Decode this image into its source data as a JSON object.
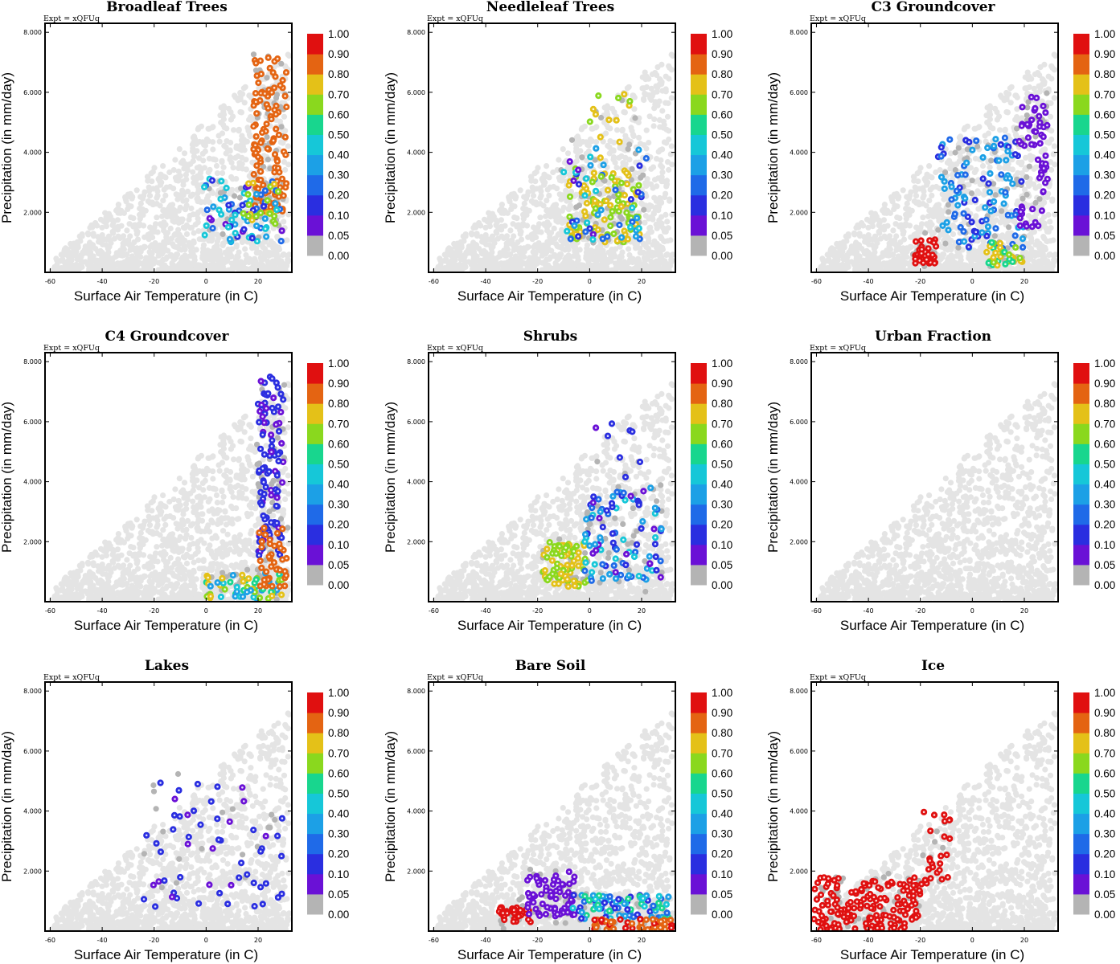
{
  "figure": {
    "colorbar": {
      "labels": [
        "0.00",
        "0.05",
        "0.10",
        "0.20",
        "0.30",
        "0.40",
        "0.50",
        "0.60",
        "0.70",
        "0.80",
        "0.90",
        "1.00"
      ],
      "colors": [
        "#b4b4b4",
        "#6a11d6",
        "#2a2ee0",
        "#1f6ae8",
        "#1ca0e6",
        "#16c7d8",
        "#18d68e",
        "#8ad81e",
        "#e4c118",
        "#e46412",
        "#e01010",
        "#e01010"
      ]
    },
    "background_point_color": "#e4e4e4",
    "zero_point_color": "#b4b4b4"
  },
  "chart_data": [
    {
      "type": "scatter",
      "title": "Broadleaf Trees",
      "expt": "Expt = xQFUq",
      "xlabel": "Surface Air Temperature (in C)",
      "ylabel": "Precipitation (in mm/day)",
      "xticks": [
        "-60",
        "-40",
        "-20",
        "0",
        "20"
      ],
      "xtick_values": [
        -60,
        -40,
        -20,
        0,
        20
      ],
      "yticks": [
        "2.000",
        "4.000",
        "6.000",
        "8.000"
      ],
      "ytick_values": [
        2,
        4,
        6,
        8
      ],
      "xlim": [
        -62,
        33
      ],
      "ylim": [
        0,
        8.3
      ],
      "highlight_clusters": [
        {
          "x_range": [
            18,
            31
          ],
          "y_range": [
            2.0,
            7.2
          ],
          "value_range": [
            0.8,
            0.9
          ],
          "count": 120
        },
        {
          "x_range": [
            -1,
            30
          ],
          "y_range": [
            1.0,
            3.2
          ],
          "value_range": [
            0.05,
            0.5
          ],
          "count": 70
        },
        {
          "x_range": [
            14,
            28
          ],
          "y_range": [
            1.6,
            3.0
          ],
          "value_range": [
            0.6,
            0.8
          ],
          "count": 20
        }
      ]
    },
    {
      "type": "scatter",
      "title": "Needleleaf Trees",
      "expt": "Expt = xQFUq",
      "xlabel": "Surface Air Temperature (in C)",
      "ylabel": "Precipitation (in mm/day)",
      "xticks": [
        "-60",
        "-40",
        "-20",
        "0",
        "20"
      ],
      "xtick_values": [
        -60,
        -40,
        -20,
        0,
        20
      ],
      "yticks": [
        "2.000",
        "4.000",
        "6.000",
        "8.000"
      ],
      "ytick_values": [
        2,
        4,
        6,
        8
      ],
      "xlim": [
        -62,
        33
      ],
      "ylim": [
        0,
        8.3
      ],
      "highlight_clusters": [
        {
          "x_range": [
            -8,
            20
          ],
          "y_range": [
            1.0,
            3.5
          ],
          "value_range": [
            0.6,
            0.8
          ],
          "count": 100
        },
        {
          "x_range": [
            -10,
            22
          ],
          "y_range": [
            1.0,
            4.2
          ],
          "value_range": [
            0.05,
            0.5
          ],
          "count": 50
        },
        {
          "x_range": [
            0,
            18
          ],
          "y_range": [
            3.0,
            6.0
          ],
          "value_range": [
            0.6,
            0.8
          ],
          "count": 18
        }
      ]
    },
    {
      "type": "scatter",
      "title": "C3 Groundcover",
      "expt": "Expt = xQFUq",
      "xlabel": "Surface Air Temperature (in C)",
      "ylabel": "Precipitation (in mm/day)",
      "xticks": [
        "-60",
        "-40",
        "-20",
        "0",
        "20"
      ],
      "xtick_values": [
        -60,
        -40,
        -20,
        0,
        20
      ],
      "yticks": [
        "2.000",
        "4.000",
        "6.000",
        "8.000"
      ],
      "ytick_values": [
        2,
        4,
        6,
        8
      ],
      "xlim": [
        -62,
        33
      ],
      "ylim": [
        0,
        8.3
      ],
      "highlight_clusters": [
        {
          "x_range": [
            -22,
            -14
          ],
          "y_range": [
            0.3,
            1.1
          ],
          "value_range": [
            0.9,
            1.0
          ],
          "count": 40
        },
        {
          "x_range": [
            -14,
            20
          ],
          "y_range": [
            0.8,
            4.5
          ],
          "value_range": [
            0.1,
            0.4
          ],
          "count": 110
        },
        {
          "x_range": [
            18,
            29
          ],
          "y_range": [
            1.5,
            6.0
          ],
          "value_range": [
            0.05,
            0.1
          ],
          "count": 60
        },
        {
          "x_range": [
            5,
            20
          ],
          "y_range": [
            0.2,
            1.0
          ],
          "value_range": [
            0.5,
            0.8
          ],
          "count": 35
        }
      ]
    },
    {
      "type": "scatter",
      "title": "C4 Groundcover",
      "expt": "Expt = xQFUq",
      "xlabel": "Surface Air Temperature (in C)",
      "ylabel": "Precipitation (in mm/day)",
      "xticks": [
        "-60",
        "-40",
        "-20",
        "0",
        "20"
      ],
      "xtick_values": [
        -60,
        -40,
        -20,
        0,
        20
      ],
      "yticks": [
        "2.000",
        "4.000",
        "6.000",
        "8.000"
      ],
      "ytick_values": [
        2,
        4,
        6,
        8
      ],
      "xlim": [
        -62,
        33
      ],
      "ylim": [
        0,
        8.3
      ],
      "highlight_clusters": [
        {
          "x_range": [
            20,
            30
          ],
          "y_range": [
            1.5,
            7.5
          ],
          "value_range": [
            0.05,
            0.2
          ],
          "count": 110
        },
        {
          "x_range": [
            0,
            30
          ],
          "y_range": [
            0.1,
            1.0
          ],
          "value_range": [
            0.3,
            0.8
          ],
          "count": 60
        },
        {
          "x_range": [
            20,
            31
          ],
          "y_range": [
            0.5,
            2.6
          ],
          "value_range": [
            0.8,
            0.9
          ],
          "count": 40
        }
      ]
    },
    {
      "type": "scatter",
      "title": "Shrubs",
      "expt": "Expt = xQFUq",
      "xlabel": "Surface Air Temperature (in C)",
      "ylabel": "Precipitation (in mm/day)",
      "xticks": [
        "-60",
        "-40",
        "-20",
        "0",
        "20"
      ],
      "xtick_values": [
        -60,
        -40,
        -20,
        0,
        20
      ],
      "yticks": [
        "2.000",
        "4.000",
        "6.000",
        "8.000"
      ],
      "ytick_values": [
        2,
        4,
        6,
        8
      ],
      "xlim": [
        -62,
        33
      ],
      "ylim": [
        0,
        8.3
      ],
      "highlight_clusters": [
        {
          "x_range": [
            -18,
            0
          ],
          "y_range": [
            0.5,
            2.0
          ],
          "value_range": [
            0.6,
            0.8
          ],
          "count": 80
        },
        {
          "x_range": [
            -2,
            28
          ],
          "y_range": [
            0.7,
            3.8
          ],
          "value_range": [
            0.05,
            0.5
          ],
          "count": 90
        },
        {
          "x_range": [
            0,
            20
          ],
          "y_range": [
            3.0,
            6.0
          ],
          "value_range": [
            0.05,
            0.2
          ],
          "count": 15
        }
      ]
    },
    {
      "type": "scatter",
      "title": "Urban Fraction",
      "expt": "Expt = xQFUq",
      "xlabel": "Surface Air Temperature (in C)",
      "ylabel": "Precipitation (in mm/day)",
      "xticks": [
        "-60",
        "-40",
        "-20",
        "0",
        "20"
      ],
      "xtick_values": [
        -60,
        -40,
        -20,
        0,
        20
      ],
      "yticks": [
        "2.000",
        "4.000",
        "6.000",
        "8.000"
      ],
      "ytick_values": [
        2,
        4,
        6,
        8
      ],
      "xlim": [
        -62,
        33
      ],
      "ylim": [
        0,
        8.3
      ],
      "highlight_clusters": []
    },
    {
      "type": "scatter",
      "title": "Lakes",
      "expt": "Expt = xQFUq",
      "xlabel": "Surface Air Temperature (in C)",
      "ylabel": "Precipitation (in mm/day)",
      "xticks": [
        "-60",
        "-40",
        "-20",
        "0",
        "20"
      ],
      "xtick_values": [
        -60,
        -40,
        -20,
        0,
        20
      ],
      "yticks": [
        "2.000",
        "4.000",
        "6.000",
        "8.000"
      ],
      "ytick_values": [
        2,
        4,
        6,
        8
      ],
      "xlim": [
        -62,
        33
      ],
      "ylim": [
        0,
        8.3
      ],
      "highlight_clusters": [
        {
          "x_range": [
            -24,
            30
          ],
          "y_range": [
            0.7,
            5.0
          ],
          "value_range": [
            0.05,
            0.2
          ],
          "count": 55
        }
      ]
    },
    {
      "type": "scatter",
      "title": "Bare Soil",
      "expt": "Expt = xQFUq",
      "xlabel": "Surface Air Temperature (in C)",
      "ylabel": "Precipitation (in mm/day)",
      "xticks": [
        "-60",
        "-40",
        "-20",
        "0",
        "20"
      ],
      "xtick_values": [
        -60,
        -40,
        -20,
        0,
        20
      ],
      "yticks": [
        "2.000",
        "4.000",
        "6.000",
        "8.000"
      ],
      "ytick_values": [
        2,
        4,
        6,
        8
      ],
      "xlim": [
        -62,
        33
      ],
      "ylim": [
        0,
        8.3
      ],
      "highlight_clusters": [
        {
          "x_range": [
            -35,
            -22
          ],
          "y_range": [
            0.3,
            0.8
          ],
          "value_range": [
            0.9,
            1.0
          ],
          "count": 35
        },
        {
          "x_range": [
            -24,
            -5
          ],
          "y_range": [
            0.5,
            2.0
          ],
          "value_range": [
            0.05,
            0.1
          ],
          "count": 70
        },
        {
          "x_range": [
            -8,
            31
          ],
          "y_range": [
            0.4,
            1.2
          ],
          "value_range": [
            0.1,
            0.6
          ],
          "count": 90
        },
        {
          "x_range": [
            0,
            32
          ],
          "y_range": [
            0.05,
            0.4
          ],
          "value_range": [
            0.8,
            1.0
          ],
          "count": 50
        }
      ]
    },
    {
      "type": "scatter",
      "title": "Ice",
      "expt": "Expt = xQFUq",
      "xlabel": "Surface Air Temperature (in C)",
      "ylabel": "Precipitation (in mm/day)",
      "xticks": [
        "-60",
        "-40",
        "-20",
        "0",
        "20"
      ],
      "xtick_values": [
        -60,
        -40,
        -20,
        0,
        20
      ],
      "yticks": [
        "2.000",
        "4.000",
        "6.000",
        "8.000"
      ],
      "ytick_values": [
        2,
        4,
        6,
        8
      ],
      "xlim": [
        -62,
        33
      ],
      "ylim": [
        0,
        8.3
      ],
      "highlight_clusters": [
        {
          "x_range": [
            -61,
            -20
          ],
          "y_range": [
            0.05,
            1.8
          ],
          "value_range": [
            0.9,
            1.0
          ],
          "count": 170
        },
        {
          "x_range": [
            -20,
            -8
          ],
          "y_range": [
            1.5,
            4.4
          ],
          "value_range": [
            0.9,
            1.0
          ],
          "count": 25
        }
      ]
    }
  ]
}
